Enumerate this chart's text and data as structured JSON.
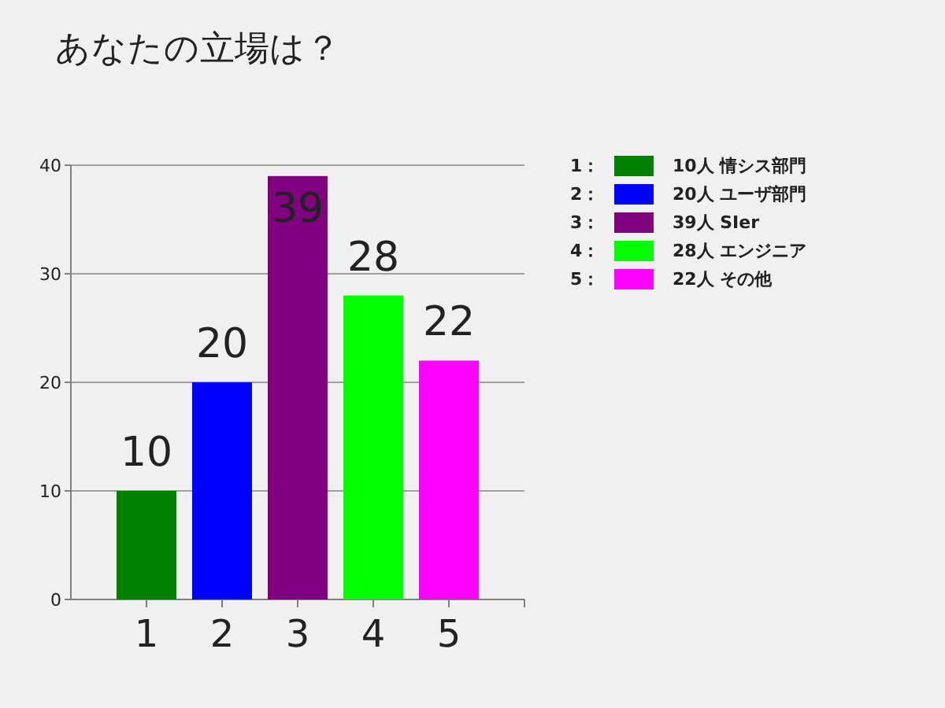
{
  "chart_data": {
    "type": "bar",
    "title": "あなたの立場は？",
    "categories": [
      "1",
      "2",
      "3",
      "4",
      "5"
    ],
    "values": [
      10,
      20,
      39,
      28,
      22
    ],
    "colors": [
      "#008000",
      "#0000ff",
      "#800080",
      "#00ff00",
      "#ff00ff"
    ],
    "ylim": [
      0,
      40
    ],
    "yticks": [
      0,
      10,
      20,
      30,
      40
    ],
    "grid": "y",
    "data_labels": true,
    "annotations": [
      "1：",
      "10人  情シス部門",
      "2：",
      "20人  ユーザ部門",
      "3：",
      "39人  SIer",
      "4：",
      "28人  エンジニア",
      "5：",
      "22人  その他"
    ]
  }
}
